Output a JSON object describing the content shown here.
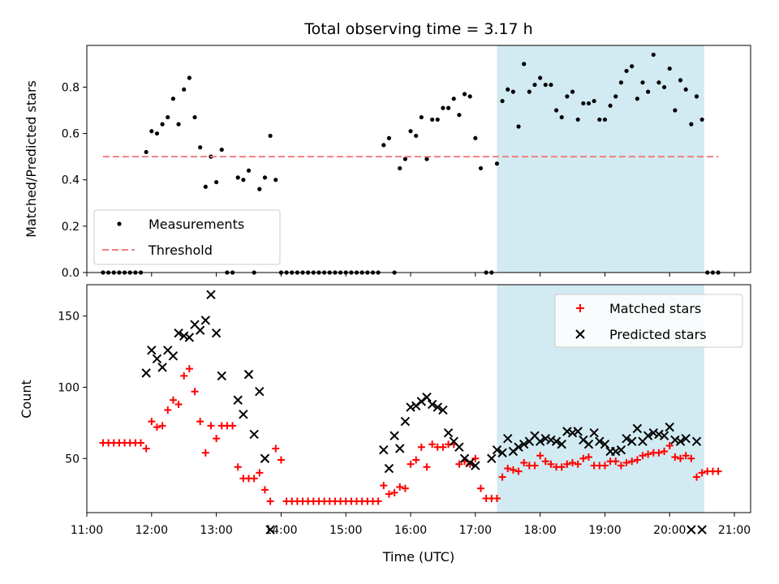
{
  "title": "Total observing time = 3.17 h",
  "chart_data": [
    {
      "type": "scatter",
      "ylabel": "Matched/Predicted stars",
      "xlabel": "",
      "xlim": [
        "11:00",
        "21:15"
      ],
      "ylim": [
        0,
        0.98
      ],
      "yticks": [
        0.0,
        0.2,
        0.4,
        0.6,
        0.8
      ],
      "ytick_labels": [
        "0.0",
        "0.2",
        "0.4",
        "0.6",
        "0.8"
      ],
      "grid": false,
      "legend": "lower-left",
      "highlight_span": [
        "17:20",
        "20:32"
      ],
      "highlight_color": "#add8e6",
      "series": [
        {
          "name": "Measurements",
          "kind": "dots",
          "color": "#000000",
          "x": [
            "11:15",
            "11:20",
            "11:25",
            "11:30",
            "11:35",
            "11:40",
            "11:45",
            "11:50",
            "11:55",
            "12:00",
            "12:05",
            "12:10",
            "12:15",
            "12:20",
            "12:25",
            "12:30",
            "12:35",
            "12:40",
            "12:45",
            "12:50",
            "12:55",
            "13:00",
            "13:05",
            "13:10",
            "13:15",
            "13:20",
            "13:25",
            "13:30",
            "13:35",
            "13:40",
            "13:45",
            "13:50",
            "13:55",
            "14:00",
            "14:05",
            "14:10",
            "14:15",
            "14:20",
            "14:25",
            "14:30",
            "14:35",
            "14:40",
            "14:45",
            "14:50",
            "14:55",
            "15:00",
            "15:05",
            "15:10",
            "15:15",
            "15:20",
            "15:25",
            "15:30",
            "15:35",
            "15:40",
            "15:45",
            "15:50",
            "15:55",
            "16:00",
            "16:05",
            "16:10",
            "16:15",
            "16:20",
            "16:25",
            "16:30",
            "16:35",
            "16:40",
            "16:45",
            "16:50",
            "16:55",
            "17:00",
            "17:05",
            "17:10",
            "17:15",
            "17:20",
            "17:25",
            "17:30",
            "17:35",
            "17:40",
            "17:45",
            "17:50",
            "17:55",
            "18:00",
            "18:05",
            "18:10",
            "18:15",
            "18:20",
            "18:25",
            "18:30",
            "18:35",
            "18:40",
            "18:45",
            "18:50",
            "18:55",
            "19:00",
            "19:05",
            "19:10",
            "19:15",
            "19:20",
            "19:25",
            "19:30",
            "19:35",
            "19:40",
            "19:45",
            "19:50",
            "19:55",
            "20:00",
            "20:05",
            "20:10",
            "20:15",
            "20:20",
            "20:25",
            "20:30",
            "20:35",
            "20:40",
            "20:45"
          ],
          "y": [
            0,
            0,
            0,
            0,
            0,
            0,
            0,
            0,
            0.52,
            0.61,
            0.6,
            0.64,
            0.67,
            0.75,
            0.64,
            0.79,
            0.84,
            0.67,
            0.54,
            0.37,
            0.5,
            0.39,
            0.53,
            0,
            0,
            0.41,
            0.4,
            0.44,
            0,
            0.36,
            0.41,
            0.59,
            0.4,
            0,
            0,
            0,
            0,
            0,
            0,
            0,
            0,
            0,
            0,
            0,
            0,
            0,
            0,
            0,
            0,
            0,
            0,
            0,
            0.55,
            0.58,
            0,
            0.45,
            0.49,
            0.61,
            0.59,
            0.67,
            0.49,
            0.66,
            0.66,
            0.71,
            0.71,
            0.75,
            0.68,
            0.77,
            0.76,
            0.58,
            0.45,
            0,
            0,
            0.47,
            0.74,
            0.79,
            0.78,
            0.63,
            0.9,
            0.78,
            0.81,
            0.84,
            0.81,
            0.81,
            0.7,
            0.67,
            0.76,
            0.78,
            0.66,
            0.73,
            0.73,
            0.74,
            0.66,
            0.66,
            0.72,
            0.76,
            0.82,
            0.87,
            0.89,
            0.75,
            0.82,
            0.78,
            0.94,
            0.82,
            0.8,
            0.88,
            0.7,
            0.83,
            0.79,
            0.64,
            0.76,
            0.66,
            0,
            0,
            0
          ]
        },
        {
          "name": "Threshold",
          "kind": "dashed-line",
          "color": "#f08080",
          "x": [
            "11:15",
            "20:45"
          ],
          "y": [
            0.5,
            0.5
          ]
        }
      ]
    },
    {
      "type": "scatter",
      "ylabel": "Count",
      "xlabel": "Time (UTC)",
      "xlim": [
        "11:00",
        "21:15"
      ],
      "ylim": [
        12,
        172
      ],
      "yticks": [
        50,
        100,
        150
      ],
      "ytick_labels": [
        "50",
        "100",
        "150"
      ],
      "xticks": [
        "11:00",
        "12:00",
        "13:00",
        "14:00",
        "15:00",
        "16:00",
        "17:00",
        "18:00",
        "19:00",
        "20:00",
        "21:00"
      ],
      "xtick_labels": [
        "11:00",
        "12:00",
        "13:00",
        "14:00",
        "15:00",
        "16:00",
        "17:00",
        "18:00",
        "19:00",
        "20:00",
        "21:00"
      ],
      "grid": false,
      "legend": "top-right",
      "highlight_span": [
        "17:20",
        "20:32"
      ],
      "highlight_color": "#add8e6",
      "series": [
        {
          "name": "Matched stars",
          "kind": "plus",
          "color": "#ff0000",
          "x": [
            "11:15",
            "11:20",
            "11:25",
            "11:30",
            "11:35",
            "11:40",
            "11:45",
            "11:50",
            "11:55",
            "12:00",
            "12:05",
            "12:10",
            "12:15",
            "12:20",
            "12:25",
            "12:30",
            "12:35",
            "12:40",
            "12:45",
            "12:50",
            "12:55",
            "13:00",
            "13:05",
            "13:10",
            "13:15",
            "13:20",
            "13:25",
            "13:30",
            "13:35",
            "13:40",
            "13:45",
            "13:50",
            "13:55",
            "14:00",
            "14:05",
            "14:10",
            "14:15",
            "14:20",
            "14:25",
            "14:30",
            "14:35",
            "14:40",
            "14:45",
            "14:50",
            "14:55",
            "15:00",
            "15:05",
            "15:10",
            "15:15",
            "15:20",
            "15:25",
            "15:30",
            "15:35",
            "15:40",
            "15:45",
            "15:50",
            "15:55",
            "16:00",
            "16:05",
            "16:10",
            "16:15",
            "16:20",
            "16:25",
            "16:30",
            "16:35",
            "16:40",
            "16:45",
            "16:50",
            "16:55",
            "17:00",
            "17:05",
            "17:10",
            "17:15",
            "17:20",
            "17:25",
            "17:30",
            "17:35",
            "17:40",
            "17:45",
            "17:50",
            "17:55",
            "18:00",
            "18:05",
            "18:10",
            "18:15",
            "18:20",
            "18:25",
            "18:30",
            "18:35",
            "18:40",
            "18:45",
            "18:50",
            "18:55",
            "19:00",
            "19:05",
            "19:10",
            "19:15",
            "19:20",
            "19:25",
            "19:30",
            "19:35",
            "19:40",
            "19:45",
            "19:50",
            "19:55",
            "20:00",
            "20:05",
            "20:10",
            "20:15",
            "20:20",
            "20:25",
            "20:30",
            "20:35",
            "20:40",
            "20:45"
          ],
          "y": [
            61,
            61,
            61,
            61,
            61,
            61,
            61,
            61,
            57,
            76,
            72,
            73,
            84,
            91,
            88,
            108,
            113,
            97,
            76,
            54,
            73,
            64,
            73,
            73,
            73,
            44,
            36,
            36,
            36,
            40,
            28,
            20,
            57,
            49,
            20,
            20,
            20,
            20,
            20,
            20,
            20,
            20,
            20,
            20,
            20,
            20,
            20,
            20,
            20,
            20,
            20,
            20,
            31,
            25,
            26,
            30,
            29,
            46,
            49,
            58,
            44,
            60,
            58,
            58,
            60,
            60,
            46,
            48,
            46,
            50,
            29,
            22,
            22,
            22,
            37,
            43,
            42,
            41,
            47,
            45,
            45,
            52,
            48,
            46,
            44,
            44,
            46,
            47,
            46,
            50,
            51,
            45,
            45,
            45,
            48,
            48,
            45,
            47,
            48,
            49,
            52,
            53,
            54,
            54,
            55,
            59,
            51,
            50,
            52,
            50,
            37,
            40,
            41,
            41,
            41
          ]
        },
        {
          "name": "Predicted stars",
          "kind": "x",
          "color": "#000000",
          "x": [
            "11:55",
            "12:00",
            "12:05",
            "12:10",
            "12:15",
            "12:20",
            "12:25",
            "12:30",
            "12:35",
            "12:40",
            "12:45",
            "12:50",
            "12:55",
            "13:00",
            "13:05",
            "13:20",
            "13:25",
            "13:30",
            "13:35",
            "13:40",
            "13:45",
            "13:50",
            "15:35",
            "15:40",
            "15:45",
            "15:50",
            "15:55",
            "16:00",
            "16:05",
            "16:10",
            "16:15",
            "16:20",
            "16:25",
            "16:30",
            "16:35",
            "16:40",
            "16:45",
            "16:50",
            "16:55",
            "17:00",
            "17:15",
            "17:20",
            "17:25",
            "17:30",
            "17:35",
            "17:40",
            "17:45",
            "17:50",
            "17:55",
            "18:00",
            "18:05",
            "18:10",
            "18:15",
            "18:20",
            "18:25",
            "18:30",
            "18:35",
            "18:40",
            "18:45",
            "18:50",
            "18:55",
            "19:00",
            "19:05",
            "19:10",
            "19:15",
            "19:20",
            "19:25",
            "19:30",
            "19:35",
            "19:40",
            "19:45",
            "19:50",
            "19:55",
            "20:00",
            "20:05",
            "20:10",
            "20:15",
            "20:20",
            "20:25",
            "20:30"
          ],
          "y": [
            110,
            126,
            120,
            114,
            126,
            122,
            138,
            136,
            135,
            144,
            140,
            147,
            165,
            138,
            108,
            91,
            81,
            109,
            67,
            97,
            50,
            0,
            56,
            43,
            66,
            57,
            76,
            86,
            87,
            90,
            93,
            88,
            86,
            84,
            68,
            62,
            58,
            50,
            47,
            45,
            50,
            56,
            54,
            64,
            55,
            58,
            60,
            62,
            66,
            62,
            64,
            63,
            62,
            60,
            69,
            68,
            69,
            63,
            60,
            68,
            62,
            60,
            55,
            55,
            56,
            64,
            62,
            71,
            62,
            66,
            68,
            67,
            66,
            72,
            63,
            62,
            64,
            0,
            62,
            0
          ]
        }
      ]
    }
  ]
}
